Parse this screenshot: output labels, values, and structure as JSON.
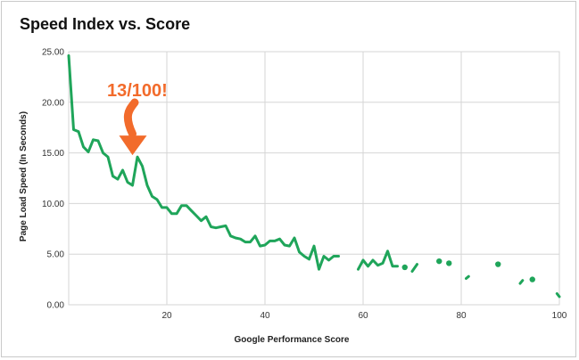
{
  "chart_data": {
    "type": "line",
    "title": "Speed Index vs. Score",
    "xlabel": "Google Performance Score",
    "ylabel": "Page Load Speed (In Seconds)",
    "xlim": [
      0,
      100
    ],
    "ylim": [
      0,
      25
    ],
    "x_ticks": [
      20,
      40,
      60,
      80,
      100
    ],
    "x_tick_labels": [
      "20",
      "40",
      "60",
      "80",
      "100"
    ],
    "y_ticks": [
      0,
      5,
      10,
      15,
      20,
      25
    ],
    "y_tick_labels": [
      "0.00",
      "5.00",
      "10.00",
      "15.00",
      "20.00",
      "25.00"
    ],
    "grid": true,
    "line_color": "#1fa55a",
    "annotation": {
      "text": "13/100!",
      "x": 13,
      "y": 14.6,
      "color": "#f26b2b"
    },
    "series": [
      {
        "values_by_segment": [
          [
            [
              0,
              24.6
            ],
            [
              1,
              17.3
            ],
            [
              2,
              17.1
            ],
            [
              3,
              15.6
            ],
            [
              4,
              15.1
            ],
            [
              5,
              16.3
            ],
            [
              6,
              16.2
            ],
            [
              7,
              15.0
            ],
            [
              8,
              14.6
            ],
            [
              9,
              12.7
            ],
            [
              10,
              12.4
            ],
            [
              11,
              13.3
            ],
            [
              12,
              12.1
            ],
            [
              13,
              11.8
            ],
            [
              14,
              14.6
            ],
            [
              15,
              13.7
            ],
            [
              16,
              11.8
            ],
            [
              17,
              10.7
            ],
            [
              18,
              10.4
            ],
            [
              19,
              9.6
            ],
            [
              20,
              9.6
            ],
            [
              21,
              9.0
            ],
            [
              22,
              9.0
            ],
            [
              23,
              9.8
            ],
            [
              24,
              9.8
            ],
            [
              25,
              9.3
            ],
            [
              26,
              8.8
            ],
            [
              27,
              8.3
            ],
            [
              28,
              8.7
            ],
            [
              29,
              7.7
            ],
            [
              30,
              7.6
            ],
            [
              31,
              7.7
            ],
            [
              32,
              7.8
            ],
            [
              33,
              6.8
            ],
            [
              34,
              6.6
            ],
            [
              35,
              6.5
            ],
            [
              36,
              6.2
            ],
            [
              37,
              6.2
            ],
            [
              38,
              6.8
            ],
            [
              39,
              5.8
            ],
            [
              40,
              5.9
            ],
            [
              41,
              6.3
            ],
            [
              42,
              6.3
            ],
            [
              43,
              6.5
            ],
            [
              44,
              5.9
            ],
            [
              45,
              5.8
            ],
            [
              46,
              6.6
            ],
            [
              47,
              5.2
            ],
            [
              48,
              4.8
            ],
            [
              49,
              4.5
            ],
            [
              50,
              5.8
            ],
            [
              51,
              3.5
            ],
            [
              52,
              4.8
            ],
            [
              53,
              4.4
            ],
            [
              54,
              4.8
            ],
            [
              55,
              4.8
            ]
          ],
          [
            [
              59,
              3.5
            ],
            [
              60,
              4.4
            ],
            [
              61,
              3.8
            ],
            [
              62,
              4.4
            ],
            [
              63,
              3.9
            ],
            [
              64,
              4.1
            ],
            [
              65,
              5.3
            ],
            [
              66,
              3.8
            ],
            [
              67,
              3.8
            ]
          ],
          [
            [
              68.5,
              3.7
            ]
          ],
          [
            [
              70,
              3.3
            ],
            [
              71,
              4.0
            ]
          ],
          [
            [
              75.5,
              4.3
            ]
          ],
          [
            [
              77.5,
              4.1
            ]
          ],
          [
            [
              81,
              2.6
            ],
            [
              81.5,
              2.8
            ]
          ],
          [
            [
              87.5,
              4.0
            ]
          ],
          [
            [
              92,
              2.1
            ],
            [
              92.5,
              2.4
            ]
          ],
          [
            [
              94.5,
              2.5
            ]
          ],
          [
            [
              99.5,
              1.1
            ],
            [
              100,
              0.8
            ]
          ]
        ]
      }
    ]
  }
}
